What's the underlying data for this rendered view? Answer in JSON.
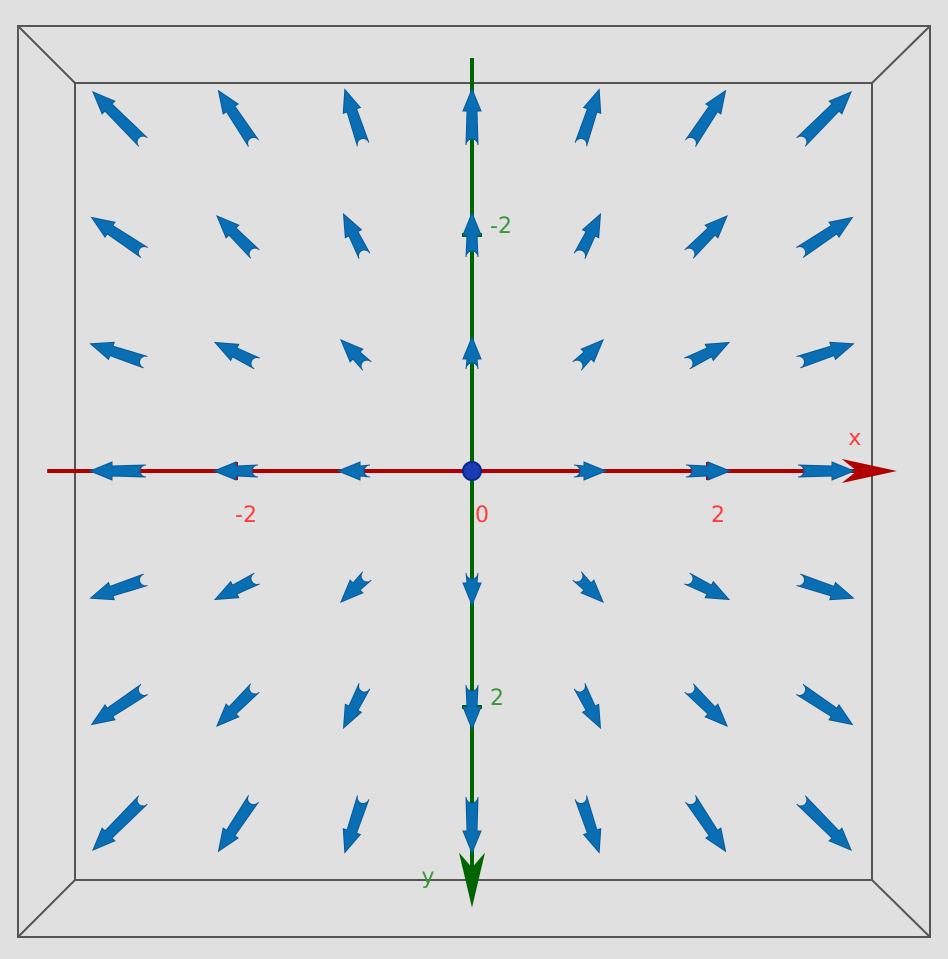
{
  "chart_data": {
    "type": "quiver",
    "x": [
      -3,
      -2,
      -1,
      0,
      1,
      2,
      3
    ],
    "y": [
      -3,
      -2,
      -1,
      0,
      1,
      2,
      3
    ],
    "u": [
      [
        -3,
        -2,
        -1,
        0,
        1,
        2,
        3
      ],
      [
        -3,
        -2,
        -1,
        0,
        1,
        2,
        3
      ],
      [
        -3,
        -2,
        -1,
        0,
        1,
        2,
        3
      ],
      [
        -3,
        -2,
        -1,
        0,
        1,
        2,
        3
      ],
      [
        -3,
        -2,
        -1,
        0,
        1,
        2,
        3
      ],
      [
        -3,
        -2,
        -1,
        0,
        1,
        2,
        3
      ],
      [
        -3,
        -2,
        -1,
        0,
        1,
        2,
        3
      ]
    ],
    "v": [
      [
        -3,
        -3,
        -3,
        -3,
        -3,
        -3,
        -3
      ],
      [
        -2,
        -2,
        -2,
        -2,
        -2,
        -2,
        -2
      ],
      [
        -1,
        -1,
        -1,
        -1,
        -1,
        -1,
        -1
      ],
      [
        0,
        0,
        0,
        0,
        0,
        0,
        0
      ],
      [
        1,
        1,
        1,
        1,
        1,
        1,
        1
      ],
      [
        2,
        2,
        2,
        2,
        2,
        2,
        2
      ],
      [
        3,
        3,
        3,
        3,
        3,
        3,
        3
      ]
    ],
    "color": "#0a6eb4",
    "xlabel": "x",
    "ylabel": "y",
    "xlim": [
      -3.6,
      3.6
    ],
    "ylim": [
      -3.5,
      3.7
    ],
    "xticks": [
      -2,
      0,
      2
    ],
    "yticks": [
      -2,
      2
    ],
    "x_axis_color": "#b00000",
    "y_axis_color": "#006400"
  }
}
